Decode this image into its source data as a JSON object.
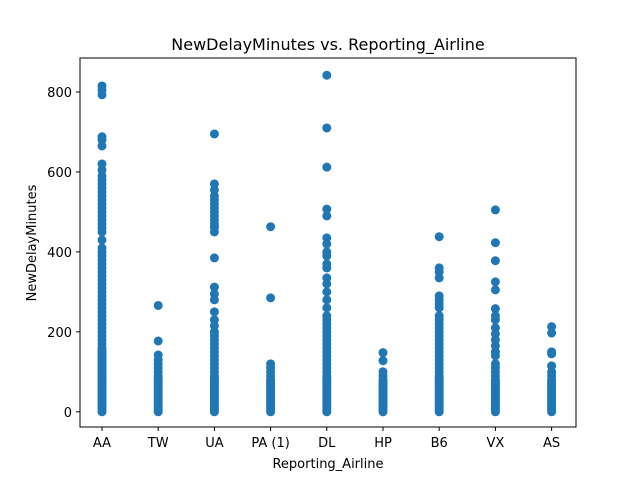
{
  "chart_data": {
    "type": "scatter",
    "title": "NewDelayMinutes vs. Reporting_Airline",
    "xlabel": "Reporting_Airline",
    "ylabel": "NewDelayMinutes",
    "categories": [
      "AA",
      "TW",
      "UA",
      "PA (1)",
      "DL",
      "HP",
      "B6",
      "VX",
      "AS"
    ],
    "ylim": [
      -38,
      885
    ],
    "yticks": [
      0,
      200,
      400,
      600,
      800
    ],
    "grid": false,
    "legend": "none",
    "marker_color": "#1f77b4",
    "series": [
      {
        "points": [
          {
            "x": "AA",
            "y": [
              0,
              5,
              10,
              15,
              20,
              25,
              30,
              35,
              40,
              45,
              50,
              55,
              60,
              65,
              70,
              75,
              80,
              85,
              90,
              95,
              100,
              105,
              110,
              115,
              120,
              125,
              130,
              135,
              140,
              145,
              150,
              155,
              160,
              170,
              180,
              190,
              200,
              210,
              220,
              230,
              240,
              250,
              260,
              270,
              280,
              290,
              300,
              310,
              320,
              330,
              340,
              350,
              360,
              370,
              380,
              390,
              400,
              410,
              430,
              450,
              460,
              470,
              480,
              490,
              500,
              510,
              520,
              530,
              540,
              550,
              560,
              570,
              580,
              590,
              605,
              620,
              665,
              680,
              688,
              793,
              805,
              815
            ]
          },
          {
            "x": "TW",
            "y": [
              0,
              5,
              10,
              15,
              20,
              25,
              30,
              35,
              40,
              45,
              50,
              55,
              60,
              65,
              70,
              75,
              80,
              85,
              90,
              100,
              110,
              120,
              130,
              142,
              177,
              266
            ]
          },
          {
            "x": "UA",
            "y": [
              0,
              5,
              10,
              15,
              20,
              25,
              30,
              35,
              40,
              45,
              50,
              55,
              60,
              65,
              70,
              75,
              80,
              85,
              90,
              100,
              110,
              120,
              130,
              140,
              150,
              160,
              170,
              180,
              190,
              200,
              215,
              230,
              250,
              280,
              295,
              312,
              385,
              450,
              462,
              470,
              480,
              490,
              500,
              510,
              520,
              530,
              540,
              555,
              570,
              695
            ]
          },
          {
            "x": "PA (1)",
            "y": [
              0,
              5,
              10,
              15,
              20,
              25,
              30,
              35,
              40,
              45,
              50,
              55,
              60,
              65,
              70,
              75,
              80,
              90,
              100,
              110,
              120,
              285,
              463
            ]
          },
          {
            "x": "DL",
            "y": [
              0,
              5,
              10,
              15,
              20,
              25,
              30,
              35,
              40,
              45,
              50,
              55,
              60,
              65,
              70,
              75,
              80,
              85,
              90,
              100,
              110,
              120,
              130,
              140,
              150,
              160,
              170,
              180,
              190,
              200,
              210,
              220,
              230,
              240,
              260,
              280,
              300,
              320,
              335,
              360,
              370,
              390,
              400,
              420,
              435,
              490,
              507,
              612,
              710,
              842
            ]
          },
          {
            "x": "HP",
            "y": [
              0,
              5,
              10,
              15,
              20,
              25,
              30,
              35,
              40,
              45,
              50,
              55,
              60,
              65,
              70,
              75,
              80,
              90,
              100,
              128,
              148
            ]
          },
          {
            "x": "B6",
            "y": [
              0,
              5,
              10,
              15,
              20,
              25,
              30,
              35,
              40,
              45,
              50,
              55,
              60,
              65,
              70,
              75,
              80,
              85,
              90,
              100,
              110,
              120,
              130,
              140,
              150,
              160,
              170,
              180,
              190,
              200,
              210,
              220,
              230,
              240,
              260,
              270,
              280,
              290,
              335,
              350,
              360,
              438
            ]
          },
          {
            "x": "VX",
            "y": [
              0,
              5,
              10,
              15,
              20,
              25,
              30,
              35,
              40,
              45,
              50,
              55,
              60,
              65,
              70,
              75,
              80,
              90,
              100,
              110,
              120,
              140,
              150,
              165,
              180,
              195,
              210,
              230,
              240,
              258,
              305,
              325,
              378,
              423,
              505
            ]
          },
          {
            "x": "AS",
            "y": [
              0,
              5,
              10,
              15,
              20,
              25,
              30,
              35,
              40,
              45,
              50,
              55,
              60,
              65,
              70,
              75,
              80,
              90,
              100,
              115,
              145,
              150,
              197,
              213
            ]
          }
        ]
      }
    ]
  }
}
